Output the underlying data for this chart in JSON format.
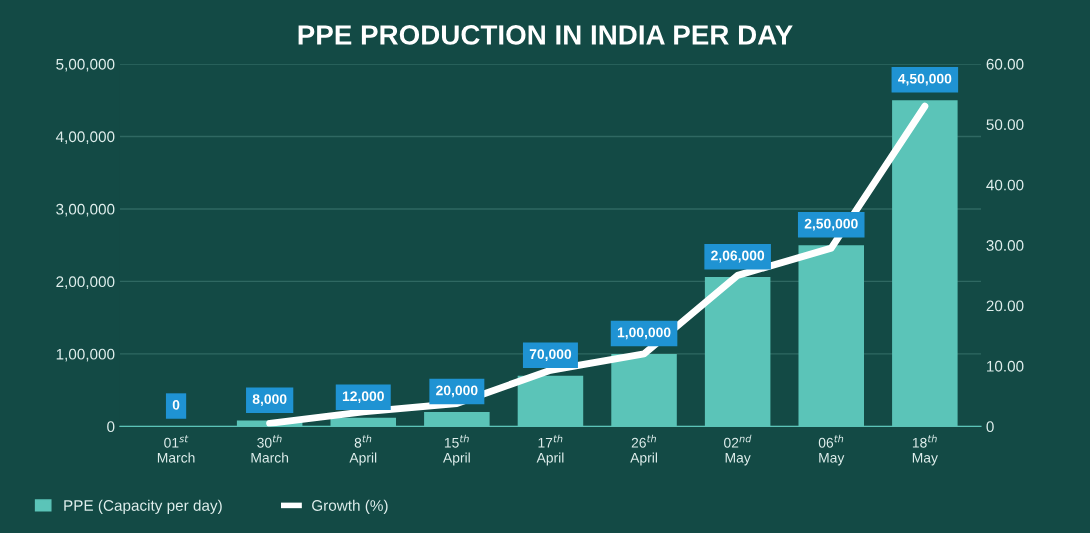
{
  "chart_data": {
    "type": "bar",
    "title": "PPE PRODUCTION IN INDIA PER DAY",
    "categories": [
      "01$^{st}$\nMarch",
      "30$^{th}$\nMarch",
      "8$^{th}$\nApril",
      "15$^{th}$\nApril",
      "17$^{th}$\nApril",
      "26$^{th}$\nApril",
      "02$^{nd}$\nMay",
      "06$^{th}$\nMay",
      "18$^{th}$\nMay"
    ],
    "series": [
      {
        "name": "PPE (Capacity per day)",
        "color": "#5bc4b8",
        "values": [
          0,
          8000,
          12000,
          20000,
          70000,
          100000,
          206000,
          250000,
          450000
        ],
        "value_labels": [
          "0",
          "8,000",
          "12,000",
          "20,000",
          "70,000",
          "1,00,000",
          "2,06,000",
          "2,50,000",
          "4,50,000"
        ]
      },
      {
        "name": "Growth (%)",
        "type": "line",
        "axis": "y2",
        "color": "#ffffff",
        "values": [
          null,
          0.5,
          2.4,
          3.8,
          9.3,
          12,
          25,
          29.5,
          53
        ]
      }
    ],
    "ylim": [
      0,
      500000
    ],
    "yticks": [
      0,
      {
        "value": 100000,
        "label": "1,00,000"
      },
      {
        "value": 200000,
        "label": "2,00,000"
      },
      {
        "value": 300000,
        "label": "3,00,000"
      },
      {
        "value": 400000,
        "label": "4,00,000"
      },
      {
        "value": 500000,
        "label": "5,00,000"
      }
    ],
    "y2lim": [
      0,
      60
    ],
    "y2ticks": [
      0,
      {
        "value": 10,
        "label": "10.00"
      },
      {
        "value": 20,
        "label": "20.00"
      },
      {
        "value": 30,
        "label": "30.00"
      },
      {
        "value": 40,
        "label": "40.00"
      },
      {
        "value": 50,
        "label": "50.00"
      },
      {
        "value": 60,
        "label": "60.00"
      }
    ],
    "grid": "y",
    "legend": "bottom left"
  }
}
